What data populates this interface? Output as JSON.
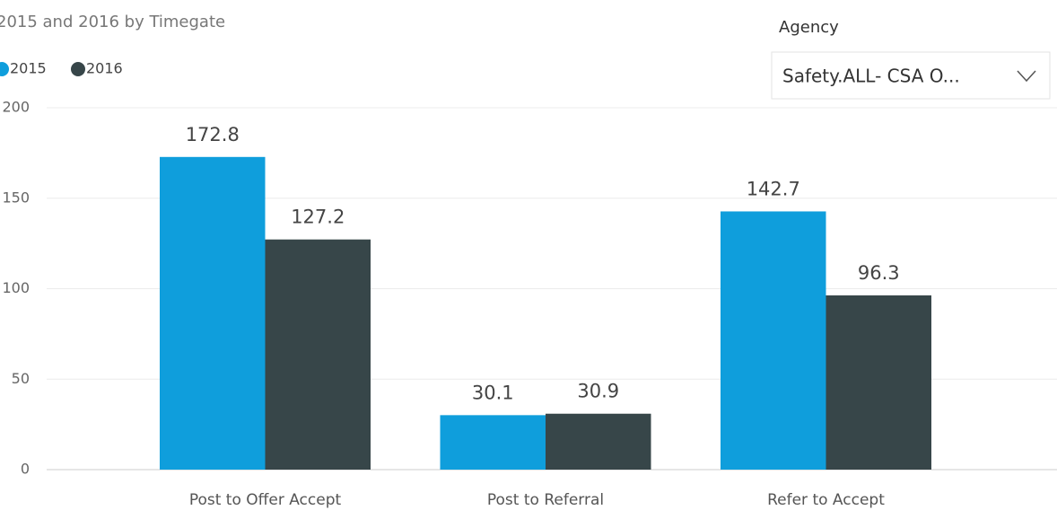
{
  "chart_data": {
    "type": "bar",
    "title": "2015 and 2016 by Timegate",
    "categories": [
      "Post to Offer Accept",
      "Post to Referral",
      "Refer to Accept"
    ],
    "series": [
      {
        "name": "2015",
        "color": "#0f9edc",
        "values": [
          172.8,
          30.1,
          142.7
        ]
      },
      {
        "name": "2016",
        "color": "#374649",
        "values": [
          127.2,
          30.9,
          96.3
        ]
      }
    ],
    "ylim": [
      0,
      200
    ],
    "yticks": [
      0,
      50,
      100,
      150,
      200
    ],
    "grid": true
  },
  "slicer": {
    "label": "Agency",
    "value": "Safety.ALL- CSA O..."
  }
}
